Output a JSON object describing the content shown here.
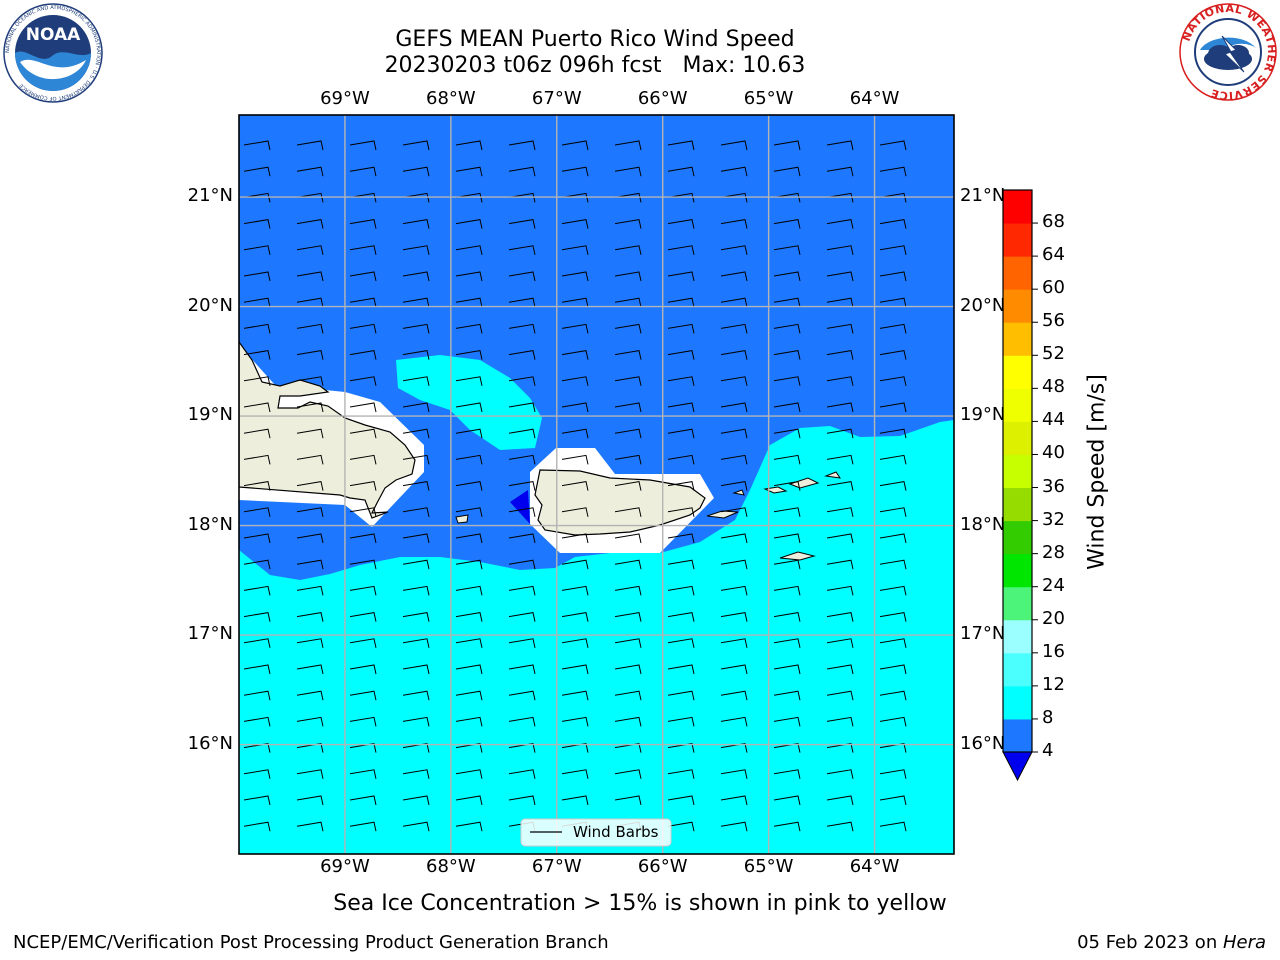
{
  "header": {
    "title_line1": "GEFS MEAN Puerto Rico Wind Speed",
    "title_line2_run": "20230203 t06z 096h fcst",
    "title_line2_max": "Max: 10.63"
  },
  "logos": {
    "left": {
      "text": "NOAA",
      "ring_text": "NATIONAL OCEANIC AND ATMOSPHERIC ADMINISTRATION · U.S. DEPARTMENT OF COMMERCE",
      "color": "#1f3d7a"
    },
    "right": {
      "ring_text": "NATIONAL WEATHER SERVICE",
      "color": "#d81e1e"
    }
  },
  "map": {
    "lon_ticks": [
      "69°W",
      "68°W",
      "67°W",
      "66°W",
      "65°W",
      "64°W"
    ],
    "lat_ticks": [
      "21°N",
      "20°N",
      "19°N",
      "18°N",
      "17°N",
      "16°N"
    ],
    "lon_range": [
      -70,
      -63.25
    ],
    "lat_range": [
      15,
      21.75
    ],
    "grid": true,
    "legend": {
      "label": "Wind Barbs",
      "placement": "bottom-center"
    },
    "barbs": "westerly-pointing barbs with one half feather, uniform spacing",
    "field_colors": {
      "land": "#eeeedd",
      "band_4_8": "#1e78ff",
      "band_8_12": "#00ffff",
      "band_0_4": "#0000ee",
      "masked": "#ffffff"
    }
  },
  "colorbar": {
    "title": "Wind Speed [m/s]",
    "levels": [
      "4",
      "8",
      "12",
      "16",
      "20",
      "24",
      "28",
      "32",
      "36",
      "40",
      "44",
      "48",
      "52",
      "56",
      "60",
      "64",
      "68"
    ],
    "colors": [
      "#1e78ff",
      "#00ffff",
      "#4cffff",
      "#9cffff",
      "#4cf57a",
      "#00e600",
      "#33cc00",
      "#96dc00",
      "#c8ff00",
      "#dcf000",
      "#f0ff00",
      "#ffff00",
      "#ffbe00",
      "#ff8c00",
      "#ff6400",
      "#ff2800",
      "#ff0000"
    ],
    "extend_below_color": "#0000ee"
  },
  "caption": "Sea Ice Concentration > 15% is shown in pink to yellow",
  "footer": {
    "left": "NCEP/EMC/Verification Post Processing Product Generation Branch",
    "date": "05 Feb 2023 on ",
    "host": "Hera"
  }
}
